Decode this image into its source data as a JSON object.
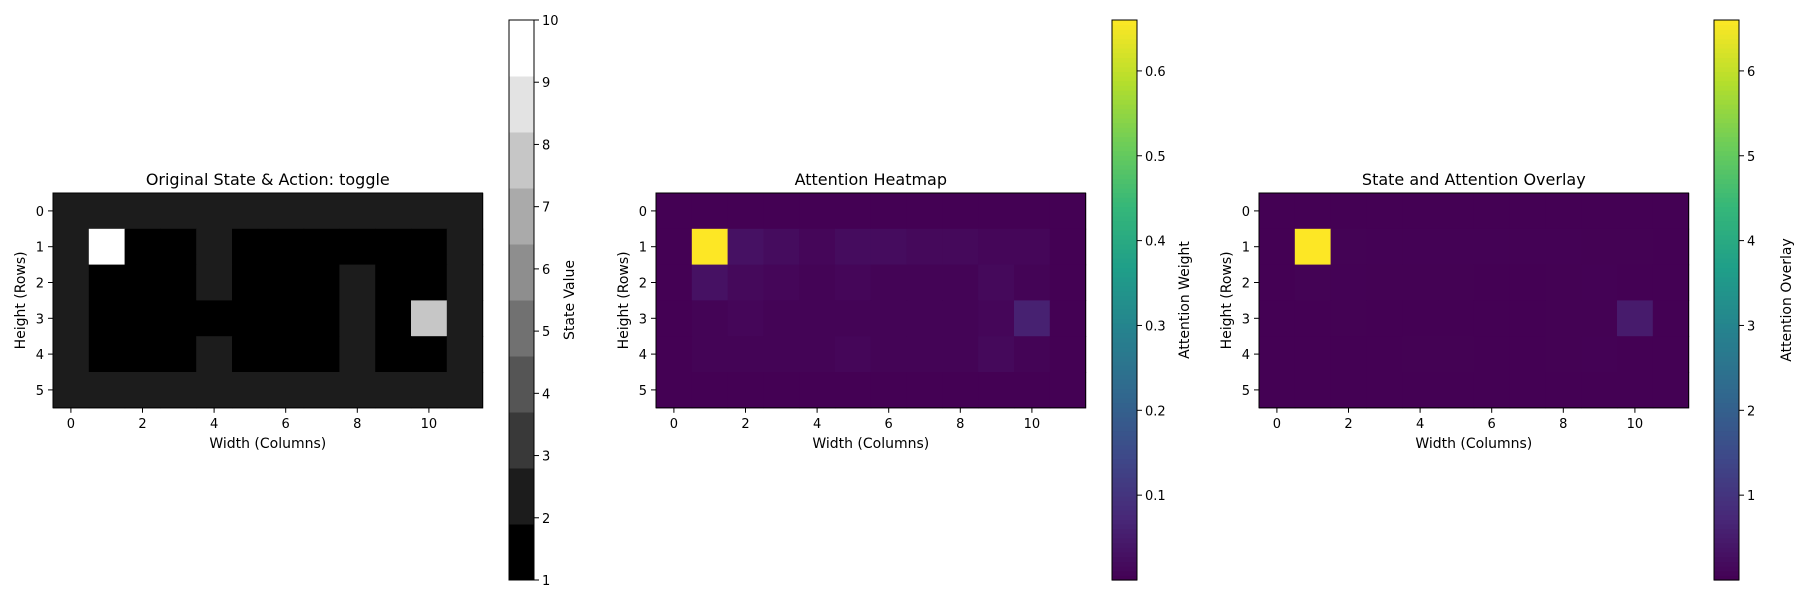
{
  "chart_data": [
    {
      "type": "heatmap",
      "title": "Original State & Action: toggle",
      "xlabel": "Width (Columns)",
      "ylabel": "Height (Rows)",
      "x_ticks": [
        "0",
        "2",
        "4",
        "6",
        "8",
        "10"
      ],
      "y_ticks": [
        "0",
        "1",
        "2",
        "3",
        "4",
        "5"
      ],
      "colormap": "gray",
      "discrete_levels": 10,
      "vmin": 1,
      "vmax": 10,
      "colorbar": {
        "label": "State Value",
        "ticks": [
          "1",
          "2",
          "3",
          "4",
          "5",
          "6",
          "7",
          "8",
          "9",
          "10"
        ]
      },
      "values": [
        [
          2,
          2,
          2,
          2,
          2,
          2,
          2,
          2,
          2,
          2,
          2,
          2
        ],
        [
          2,
          10,
          1,
          1,
          2,
          1,
          1,
          1,
          1,
          1,
          1,
          2
        ],
        [
          2,
          1,
          1,
          1,
          2,
          1,
          1,
          1,
          2,
          1,
          1,
          2
        ],
        [
          2,
          1,
          1,
          1,
          1,
          1,
          1,
          1,
          2,
          1,
          8,
          2
        ],
        [
          2,
          1,
          1,
          1,
          2,
          1,
          1,
          1,
          2,
          1,
          1,
          2
        ],
        [
          2,
          2,
          2,
          2,
          2,
          2,
          2,
          2,
          2,
          2,
          2,
          2
        ]
      ]
    },
    {
      "type": "heatmap",
      "title": "Attention Heatmap",
      "xlabel": "Width (Columns)",
      "ylabel": "Height (Rows)",
      "x_ticks": [
        "0",
        "2",
        "4",
        "6",
        "8",
        "10"
      ],
      "y_ticks": [
        "0",
        "1",
        "2",
        "3",
        "4",
        "5"
      ],
      "colormap": "viridis",
      "vmin": 0.0,
      "vmax": 0.66,
      "colorbar": {
        "label": "Attention Weight",
        "ticks": [
          "0.1",
          "0.2",
          "0.3",
          "0.4",
          "0.5",
          "0.6"
        ]
      },
      "values": [
        [
          0.0,
          0.0,
          0.0,
          0.0,
          0.0,
          0.0,
          0.0,
          0.0,
          0.0,
          0.0,
          0.0,
          0.0
        ],
        [
          0.0,
          0.66,
          0.03,
          0.02,
          0.01,
          0.02,
          0.02,
          0.015,
          0.015,
          0.01,
          0.01,
          0.0
        ],
        [
          0.0,
          0.03,
          0.015,
          0.01,
          0.005,
          0.01,
          0.005,
          0.005,
          0.005,
          0.015,
          0.005,
          0.0
        ],
        [
          0.0,
          0.005,
          0.01,
          0.005,
          0.005,
          0.005,
          0.005,
          0.005,
          0.005,
          0.01,
          0.06,
          0.0
        ],
        [
          0.0,
          0.005,
          0.005,
          0.005,
          0.005,
          0.01,
          0.005,
          0.005,
          0.005,
          0.015,
          0.005,
          0.0
        ],
        [
          0.0,
          0.0,
          0.0,
          0.0,
          0.0,
          0.0,
          0.0,
          0.0,
          0.0,
          0.0,
          0.0,
          0.0
        ]
      ]
    },
    {
      "type": "heatmap",
      "title": "State and Attention Overlay",
      "xlabel": "Width (Columns)",
      "ylabel": "Height (Rows)",
      "x_ticks": [
        "0",
        "2",
        "4",
        "6",
        "8",
        "10"
      ],
      "y_ticks": [
        "0",
        "1",
        "2",
        "3",
        "4",
        "5"
      ],
      "colormap": "viridis",
      "vmin": 0.0,
      "vmax": 6.6,
      "colorbar": {
        "label": "Attention Overlay",
        "ticks": [
          "1",
          "2",
          "3",
          "4",
          "5",
          "6"
        ]
      },
      "values": [
        [
          0.0,
          0.0,
          0.0,
          0.0,
          0.0,
          0.0,
          0.0,
          0.0,
          0.0,
          0.0,
          0.0,
          0.0
        ],
        [
          0.0,
          6.6,
          0.03,
          0.02,
          0.02,
          0.02,
          0.02,
          0.015,
          0.015,
          0.01,
          0.01,
          0.0
        ],
        [
          0.0,
          0.03,
          0.015,
          0.01,
          0.01,
          0.01,
          0.005,
          0.005,
          0.01,
          0.015,
          0.005,
          0.0
        ],
        [
          0.0,
          0.005,
          0.01,
          0.005,
          0.005,
          0.005,
          0.005,
          0.005,
          0.01,
          0.01,
          0.48,
          0.0
        ],
        [
          0.0,
          0.005,
          0.005,
          0.005,
          0.01,
          0.01,
          0.005,
          0.005,
          0.01,
          0.015,
          0.005,
          0.0
        ],
        [
          0.0,
          0.0,
          0.0,
          0.0,
          0.0,
          0.0,
          0.0,
          0.0,
          0.0,
          0.0,
          0.0,
          0.0
        ]
      ]
    }
  ]
}
